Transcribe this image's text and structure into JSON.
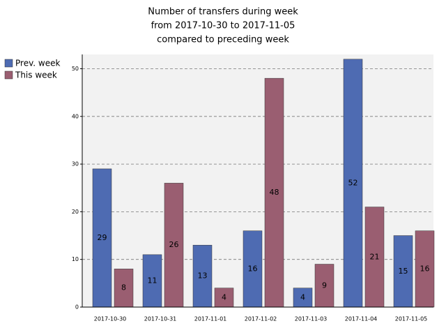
{
  "chart_data": {
    "type": "bar",
    "title": [
      "Number of transfers during week",
      "from 2017-10-30 to 2017-11-05",
      "compared to preceding week"
    ],
    "categories": [
      "2017-10-30",
      "2017-10-31",
      "2017-11-01",
      "2017-11-02",
      "2017-11-03",
      "2017-11-04",
      "2017-11-05"
    ],
    "series": [
      {
        "name": "Prev. week",
        "color": "#4e6bb2",
        "values": [
          29,
          11,
          13,
          16,
          4,
          52,
          15
        ]
      },
      {
        "name": "This week",
        "color": "#9a5e71",
        "values": [
          8,
          26,
          4,
          48,
          9,
          21,
          16
        ]
      }
    ],
    "ylim": [
      0,
      53
    ],
    "yticks": [
      0,
      10,
      20,
      30,
      40,
      50
    ],
    "grid": true,
    "legend": "left"
  }
}
